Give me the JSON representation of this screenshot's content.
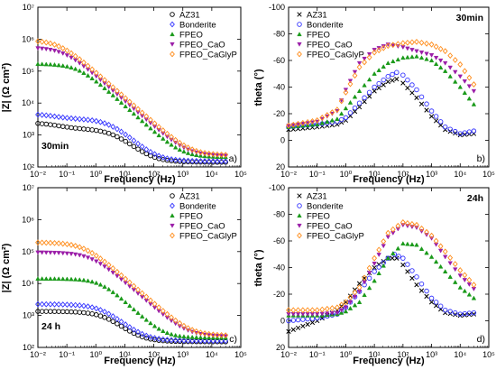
{
  "colors": {
    "AZ31": "#000000",
    "Bonderite": "#3333ff",
    "FPEO": "#1a9a1a",
    "FPEO_CaO": "#9b1ea8",
    "FPEO_CaGlyP": "#ff8c1a"
  },
  "chart_data": [
    {
      "type": "scatter",
      "panel_letter": "a)",
      "condition_label": "30min",
      "xlabel": "Frequency (Hz)",
      "ylabel": "|Z| (Ω cm²)",
      "x_scale": "log",
      "y_scale": "log",
      "xlim": [
        0.01,
        100000
      ],
      "ylim": [
        100,
        10000000
      ],
      "x_ticks": [
        "10⁻²",
        "10⁻¹",
        "10⁰",
        "10¹",
        "10²",
        "10³",
        "10⁴",
        "10⁵"
      ],
      "y_ticks": [
        "10²",
        "10³",
        "10⁴",
        "10⁵",
        "10⁶",
        "10⁷"
      ],
      "legend": {
        "position": "top-right",
        "entries": [
          "AZ31",
          "Bonderite",
          "FPEO",
          "FPEO_CaO",
          "FPEO_CaGlyP"
        ]
      },
      "series": [
        {
          "name": "AZ31",
          "marker": "circle",
          "model": {
            "R0": 140,
            "R1": 1400,
            "fc": 4,
            "alpha": 0.8,
            "Rlf": 900,
            "fl": 0.04
          },
          "x": [
            0.01,
            30000
          ]
        },
        {
          "name": "Bonderite",
          "marker": "diamond",
          "model": {
            "R0": 150,
            "R1": 3000,
            "fc": 3,
            "alpha": 0.82,
            "Rlf": 1500,
            "fl": 0.03
          },
          "x": [
            0.01,
            30000
          ]
        },
        {
          "name": "FPEO",
          "marker": "triangle-up",
          "model": {
            "R0": 200,
            "R1": 170000,
            "fc": 0.25,
            "alpha": 0.82
          },
          "x": [
            0.01,
            30000
          ]
        },
        {
          "name": "FPEO_CaO",
          "marker": "triangle-down",
          "model": {
            "R0": 220,
            "R1": 560000,
            "fc": 0.08,
            "alpha": 0.8
          },
          "x": [
            0.01,
            30000
          ]
        },
        {
          "name": "FPEO_CaGlyP",
          "marker": "diamond",
          "model": {
            "R0": 230,
            "R1": 950000,
            "fc": 0.055,
            "alpha": 0.8
          },
          "x": [
            0.01,
            30000
          ]
        }
      ]
    },
    {
      "type": "scatter",
      "panel_letter": "b)",
      "condition_label": "30min",
      "xlabel": "Frequency (Hz)",
      "ylabel": "theta (°)",
      "x_scale": "log",
      "y_scale": "linear",
      "y_inverted": true,
      "xlim": [
        0.01,
        100000
      ],
      "ylim": [
        -100,
        20
      ],
      "x_ticks": [
        "10⁻²",
        "10⁻¹",
        "10⁰",
        "10¹",
        "10²",
        "10³",
        "10⁴",
        "10⁵"
      ],
      "y_ticks": [
        "-100",
        "-80",
        "-60",
        "-40",
        "-20",
        "0",
        "20"
      ],
      "legend": {
        "position": "top-left",
        "entries": [
          "AZ31",
          "Bonderite",
          "FPEO",
          "FPEO_CaO",
          "FPEO_CaGlyP"
        ]
      },
      "series": [
        {
          "name": "AZ31",
          "marker": "x",
          "points": [
            [
              0.01,
              -8
            ],
            [
              0.1,
              -10
            ],
            [
              0.5,
              -12
            ],
            [
              1,
              -15
            ],
            [
              3,
              -25
            ],
            [
              10,
              -37
            ],
            [
              30,
              -44
            ],
            [
              60,
              -46
            ],
            [
              100,
              -43
            ],
            [
              300,
              -32
            ],
            [
              1000,
              -18
            ],
            [
              3000,
              -8
            ],
            [
              10000,
              -4
            ],
            [
              30000,
              -5
            ]
          ]
        },
        {
          "name": "Bonderite",
          "marker": "circle",
          "points": [
            [
              0.01,
              -10
            ],
            [
              0.1,
              -12
            ],
            [
              0.5,
              -14
            ],
            [
              1,
              -17
            ],
            [
              3,
              -28
            ],
            [
              10,
              -40
            ],
            [
              30,
              -48
            ],
            [
              60,
              -51
            ],
            [
              100,
              -49
            ],
            [
              300,
              -38
            ],
            [
              1000,
              -22
            ],
            [
              3000,
              -10
            ],
            [
              10000,
              -5
            ],
            [
              30000,
              -7
            ]
          ]
        },
        {
          "name": "FPEO",
          "marker": "triangle-up",
          "points": [
            [
              0.01,
              -10
            ],
            [
              0.1,
              -12
            ],
            [
              0.5,
              -16
            ],
            [
              1,
              -24
            ],
            [
              3,
              -37
            ],
            [
              10,
              -50
            ],
            [
              30,
              -58
            ],
            [
              100,
              -62
            ],
            [
              300,
              -63
            ],
            [
              1000,
              -60
            ],
            [
              3000,
              -52
            ],
            [
              10000,
              -40
            ],
            [
              30000,
              -27
            ]
          ]
        },
        {
          "name": "FPEO_CaO",
          "marker": "triangle-down",
          "points": [
            [
              0.01,
              -11
            ],
            [
              0.1,
              -14
            ],
            [
              0.5,
              -22
            ],
            [
              1,
              -38
            ],
            [
              3,
              -58
            ],
            [
              10,
              -68
            ],
            [
              30,
              -72
            ],
            [
              100,
              -70
            ],
            [
              300,
              -67
            ],
            [
              1000,
              -64
            ],
            [
              3000,
              -58
            ],
            [
              10000,
              -48
            ],
            [
              30000,
              -37
            ]
          ]
        },
        {
          "name": "FPEO_CaGlyP",
          "marker": "diamond",
          "points": [
            [
              0.01,
              -11
            ],
            [
              0.1,
              -15
            ],
            [
              0.5,
              -23
            ],
            [
              1,
              -36
            ],
            [
              3,
              -55
            ],
            [
              10,
              -66
            ],
            [
              30,
              -71
            ],
            [
              100,
              -73
            ],
            [
              300,
              -74
            ],
            [
              1000,
              -72
            ],
            [
              3000,
              -67
            ],
            [
              10000,
              -57
            ],
            [
              30000,
              -42
            ]
          ]
        }
      ]
    },
    {
      "type": "scatter",
      "panel_letter": "c)",
      "condition_label": "24 h",
      "xlabel": "Frequency (Hz)",
      "ylabel": "|Z| (Ω cm²)",
      "x_scale": "log",
      "y_scale": "log",
      "xlim": [
        0.01,
        100000
      ],
      "ylim": [
        100,
        10000000
      ],
      "x_ticks": [
        "10⁻²",
        "10⁻¹",
        "10⁰",
        "10¹",
        "10²",
        "10³",
        "10⁴",
        "10⁵"
      ],
      "y_ticks": [
        "10²",
        "10³",
        "10⁴",
        "10⁵",
        "10⁶",
        "10⁷"
      ],
      "legend": {
        "position": "top-right",
        "entries": [
          "AZ31",
          "Bonderite",
          "FPEO",
          "FPEO_CaO",
          "FPEO_CaGlyP"
        ]
      },
      "series": [
        {
          "name": "AZ31",
          "marker": "circle",
          "model": {
            "R0": 150,
            "R1": 1200,
            "fc": 2,
            "alpha": 0.8
          },
          "x": [
            0.01,
            30000
          ]
        },
        {
          "name": "Bonderite",
          "marker": "diamond",
          "model": {
            "R0": 160,
            "R1": 2100,
            "fc": 1.6,
            "alpha": 0.8
          },
          "x": [
            0.01,
            30000
          ]
        },
        {
          "name": "FPEO",
          "marker": "triangle-up",
          "model": {
            "R0": 200,
            "R1": 14000,
            "fc": 1.5,
            "alpha": 0.85
          },
          "x": [
            0.01,
            30000
          ]
        },
        {
          "name": "FPEO_CaO",
          "marker": "triangle-down",
          "model": {
            "R0": 220,
            "R1": 95000,
            "fc": 0.7,
            "alpha": 0.8
          },
          "x": [
            0.01,
            30000
          ]
        },
        {
          "name": "FPEO_CaGlyP",
          "marker": "diamond",
          "model": {
            "R0": 230,
            "R1": 195000,
            "fc": 0.4,
            "alpha": 0.8
          },
          "x": [
            0.01,
            30000
          ]
        }
      ]
    },
    {
      "type": "scatter",
      "panel_letter": "d)",
      "condition_label": "24h",
      "xlabel": "Frequency (Hz)",
      "ylabel": "theta (°)",
      "x_scale": "log",
      "y_scale": "linear",
      "y_inverted": true,
      "xlim": [
        0.01,
        100000
      ],
      "ylim": [
        -100,
        20
      ],
      "x_ticks": [
        "10⁻²",
        "10⁻¹",
        "10⁰",
        "10¹",
        "10²",
        "10³",
        "10⁴",
        "10⁵"
      ],
      "y_ticks": [
        "-100",
        "-80",
        "-60",
        "-40",
        "-20",
        "0",
        "20"
      ],
      "legend": {
        "position": "top-left",
        "entries": [
          "AZ31",
          "Bonderite",
          "FPEO",
          "FPEO_CaO",
          "FPEO_CaGlyP"
        ]
      },
      "series": [
        {
          "name": "AZ31",
          "marker": "x",
          "points": [
            [
              0.01,
              8
            ],
            [
              0.1,
              0
            ],
            [
              0.5,
              -8
            ],
            [
              1,
              -14
            ],
            [
              3,
              -28
            ],
            [
              10,
              -40
            ],
            [
              30,
              -47
            ],
            [
              60,
              -47
            ],
            [
              100,
              -42
            ],
            [
              300,
              -27
            ],
            [
              1000,
              -14
            ],
            [
              3000,
              -6
            ],
            [
              10000,
              -4
            ],
            [
              30000,
              -5
            ]
          ]
        },
        {
          "name": "Bonderite",
          "marker": "circle",
          "points": [
            [
              0.01,
              0
            ],
            [
              0.1,
              -2
            ],
            [
              0.5,
              -5
            ],
            [
              1,
              -10
            ],
            [
              3,
              -22
            ],
            [
              10,
              -37
            ],
            [
              30,
              -47
            ],
            [
              50,
              -50
            ],
            [
              100,
              -47
            ],
            [
              300,
              -33
            ],
            [
              1000,
              -17
            ],
            [
              3000,
              -8
            ],
            [
              10000,
              -5
            ],
            [
              30000,
              -6
            ]
          ]
        },
        {
          "name": "FPEO",
          "marker": "triangle-up",
          "points": [
            [
              0.01,
              -4
            ],
            [
              0.1,
              -4
            ],
            [
              0.5,
              -5
            ],
            [
              1,
              -7
            ],
            [
              3,
              -14
            ],
            [
              10,
              -30
            ],
            [
              30,
              -47
            ],
            [
              100,
              -58
            ],
            [
              300,
              -57
            ],
            [
              1000,
              -48
            ],
            [
              3000,
              -37
            ],
            [
              10000,
              -25
            ],
            [
              30000,
              -17
            ]
          ]
        },
        {
          "name": "FPEO_CaO",
          "marker": "triangle-down",
          "points": [
            [
              0.01,
              -5
            ],
            [
              0.1,
              -5
            ],
            [
              0.5,
              -6
            ],
            [
              1,
              -10
            ],
            [
              3,
              -22
            ],
            [
              10,
              -43
            ],
            [
              30,
              -63
            ],
            [
              100,
              -72
            ],
            [
              300,
              -70
            ],
            [
              1000,
              -62
            ],
            [
              3000,
              -48
            ],
            [
              10000,
              -34
            ],
            [
              30000,
              -24
            ]
          ]
        },
        {
          "name": "FPEO_CaGlyP",
          "marker": "diamond",
          "points": [
            [
              0.01,
              -8
            ],
            [
              0.1,
              -8
            ],
            [
              0.5,
              -10
            ],
            [
              1,
              -14
            ],
            [
              3,
              -25
            ],
            [
              10,
              -47
            ],
            [
              30,
              -66
            ],
            [
              100,
              -74
            ],
            [
              300,
              -72
            ],
            [
              1000,
              -64
            ],
            [
              3000,
              -52
            ],
            [
              10000,
              -38
            ],
            [
              30000,
              -27
            ]
          ]
        }
      ]
    }
  ]
}
